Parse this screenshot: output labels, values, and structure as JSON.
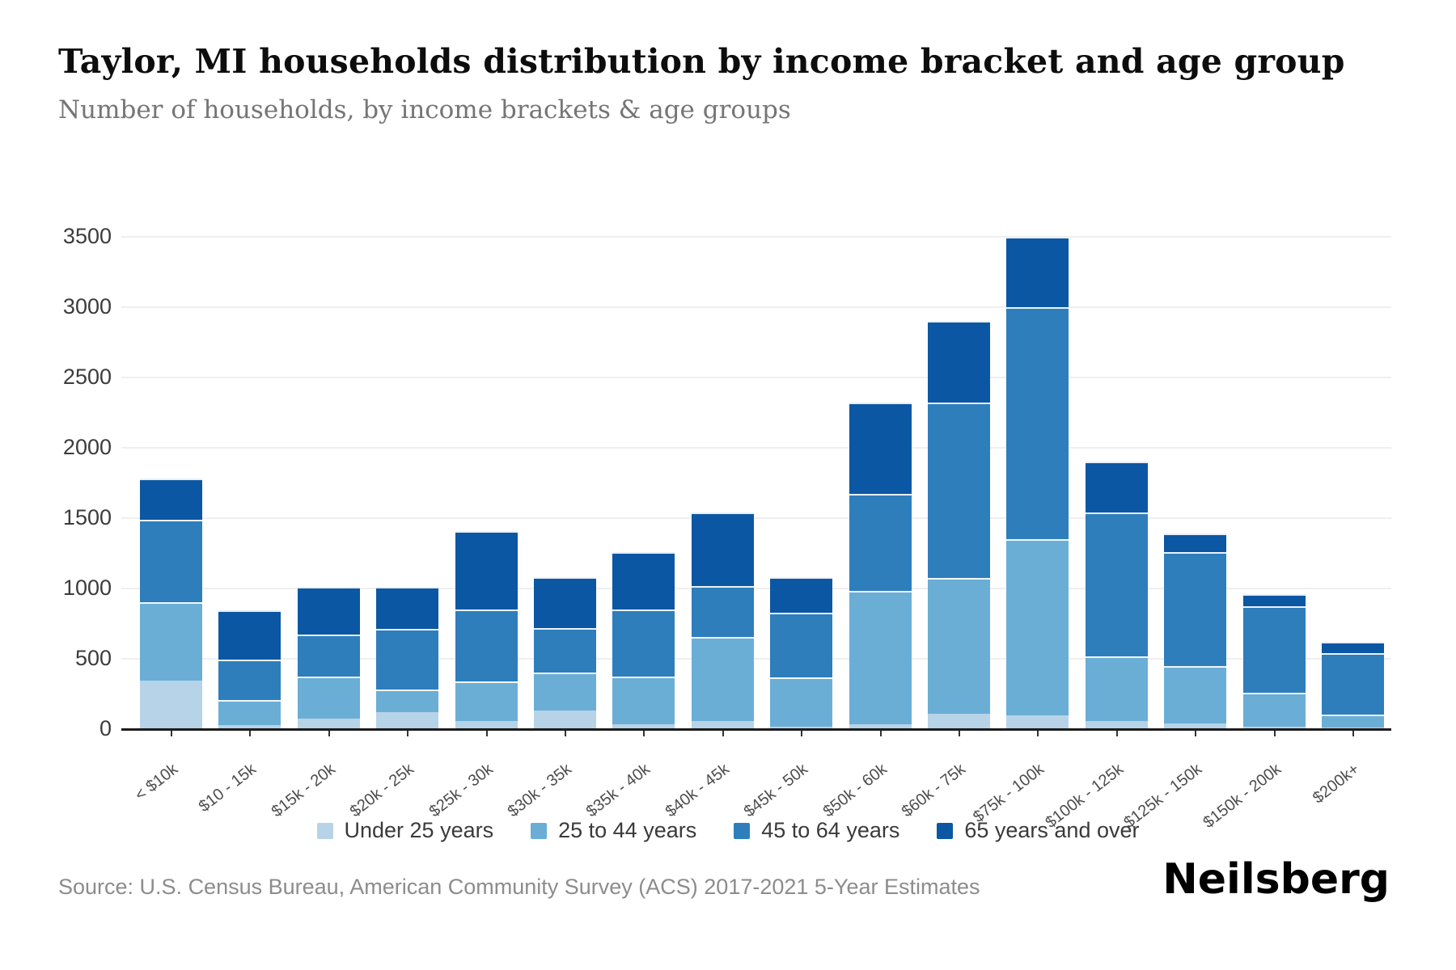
{
  "header": {
    "title": "Taylor, MI households distribution by income bracket and age group",
    "subtitle": "Number of households, by income brackets & age groups"
  },
  "footer": {
    "source": "Source: U.S. Census Bureau, American Community Survey (ACS) 2017-2021 5-Year Estimates",
    "logo_text": "Neilsberg"
  },
  "legend": [
    {
      "label": "Under 25 years",
      "color": "#b7d3e8"
    },
    {
      "label": "25 to 44 years",
      "color": "#6aaed6"
    },
    {
      "label": "45 to 64 years",
      "color": "#2e7ebc"
    },
    {
      "label": "65 years and over",
      "color": "#0b57a4"
    }
  ],
  "chart_data": {
    "type": "bar",
    "stacked": true,
    "title": "Taylor, MI households distribution by income bracket and age group",
    "subtitle": "Number of households, by income brackets & age groups",
    "xlabel": "",
    "ylabel": "",
    "ylim": [
      0,
      3500
    ],
    "ytick_interval": 500,
    "yticks": [
      0,
      500,
      1000,
      1500,
      2000,
      2500,
      3000,
      3500
    ],
    "grid": true,
    "legend_position": "bottom",
    "categories": [
      "< $10k",
      "$10 - 15k",
      "$15k - 20k",
      "$20k - 25k",
      "$25k - 30k",
      "$30k - 35k",
      "$35k - 40k",
      "$40k - 45k",
      "$45k - 50k",
      "$50k - 60k",
      "$60k - 75k",
      "$75k - 100k",
      "$100k - 125k",
      "$125k - 150k",
      "$150k - 200k",
      "$200k+"
    ],
    "series": [
      {
        "name": "Under 25 years",
        "color": "#b7d3e8",
        "values": [
          345,
          30,
          75,
          120,
          60,
          130,
          35,
          55,
          15,
          35,
          110,
          100,
          60,
          40,
          15,
          10
        ]
      },
      {
        "name": "25 to 44 years",
        "color": "#6aaed6",
        "values": [
          560,
          175,
          300,
          160,
          280,
          270,
          340,
          600,
          355,
          950,
          965,
          1250,
          460,
          410,
          245,
          95
        ]
      },
      {
        "name": "45 to 64 years",
        "color": "#2e7ebc",
        "values": [
          585,
          290,
          295,
          430,
          510,
          320,
          475,
          365,
          460,
          690,
          1245,
          1650,
          1020,
          810,
          615,
          435
        ]
      },
      {
        "name": "65 years and over",
        "color": "#0b57a4",
        "values": [
          290,
          350,
          340,
          300,
          560,
          360,
          410,
          520,
          250,
          645,
          580,
          500,
          360,
          130,
          85,
          80
        ]
      }
    ],
    "totals": [
      1780,
      845,
      1010,
      1010,
      1410,
      1080,
      1260,
      1540,
      1080,
      2320,
      2900,
      3500,
      1900,
      1390,
      960,
      620
    ]
  }
}
